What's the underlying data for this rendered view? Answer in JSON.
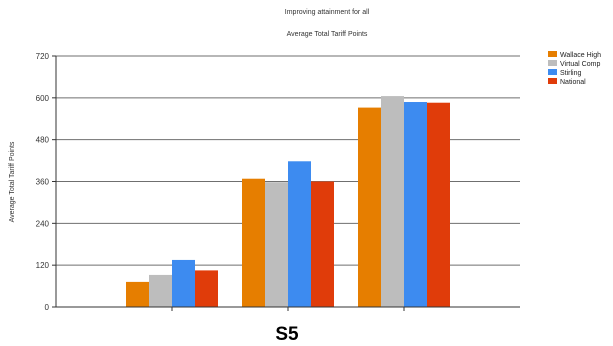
{
  "chart_data": {
    "type": "bar",
    "title": "Improving attainment for all",
    "subtitle": "Average Total Tariff Points",
    "xlabel": "",
    "ylabel": "Average Total Tariff Points",
    "categories": [
      "",
      "",
      ""
    ],
    "ylim": [
      0,
      720
    ],
    "yticks": [
      "0",
      "120",
      "240",
      "360",
      "480",
      "600",
      "720"
    ],
    "grid": true,
    "legend_position": "right",
    "series": [
      {
        "name": "Wallace High",
        "color": "#E67E00",
        "values": [
          72,
          368,
          572
        ]
      },
      {
        "name": "Virtual Comp",
        "color": "#BDBDBD",
        "values": [
          92,
          358,
          605
        ]
      },
      {
        "name": "Stirling",
        "color": "#3D8BF0",
        "values": [
          135,
          418,
          588
        ]
      },
      {
        "name": "National",
        "color": "#E03C0A",
        "values": [
          105,
          360,
          586
        ]
      }
    ],
    "annotation": "S5"
  }
}
